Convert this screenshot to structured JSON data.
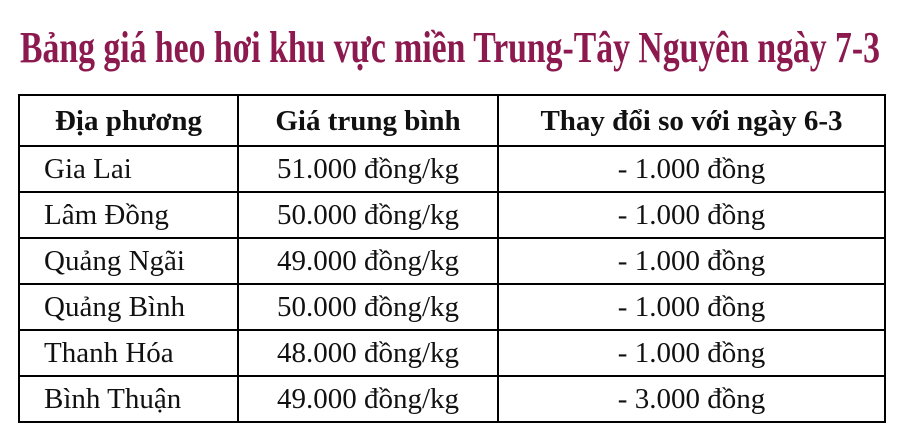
{
  "title": "Bảng giá heo hơi khu vực miền Trung-Tây Nguyên ngày 7-3",
  "table": {
    "headers": [
      "Địa phương",
      "Giá trung bình",
      "Thay đổi so với ngày 6-3"
    ],
    "rows": [
      [
        "Gia Lai",
        "51.000 đồng/kg",
        "- 1.000 đồng"
      ],
      [
        "Lâm Đồng",
        "50.000 đồng/kg",
        "- 1.000 đồng"
      ],
      [
        "Quảng Ngãi",
        "49.000 đồng/kg",
        "- 1.000 đồng"
      ],
      [
        "Quảng Bình",
        "50.000 đồng/kg",
        "- 1.000 đồng"
      ],
      [
        "Thanh Hóa",
        "48.000 đồng/kg",
        "- 1.000 đồng"
      ],
      [
        "Bình Thuận",
        "49.000 đồng/kg",
        "- 3.000 đồng"
      ]
    ]
  }
}
